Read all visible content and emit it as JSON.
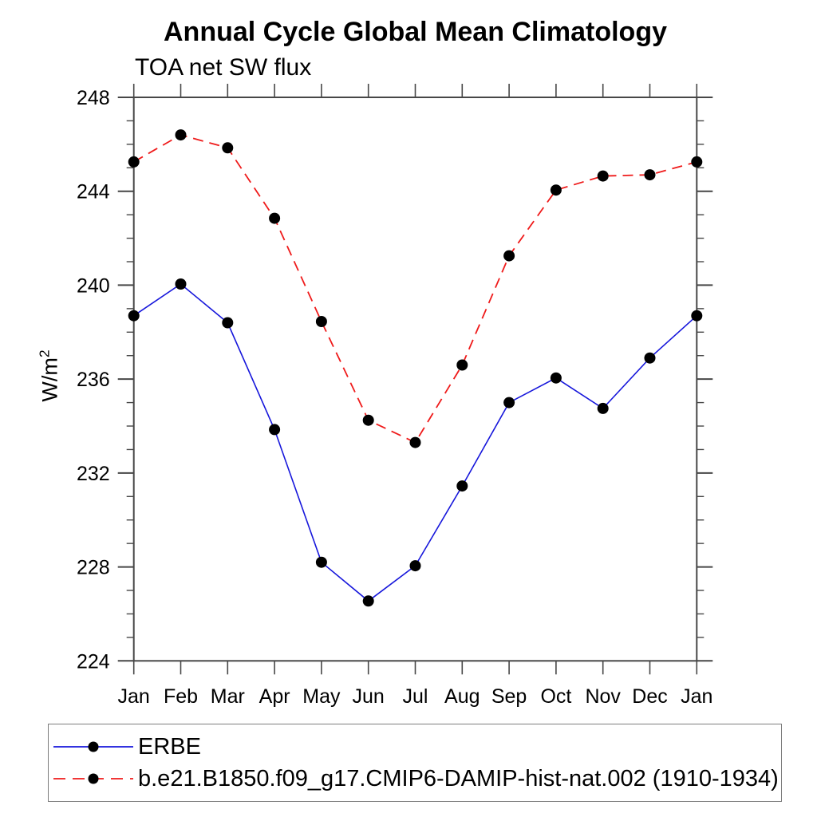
{
  "page": {
    "background": "#ffffff"
  },
  "chart": {
    "title": "Annual Cycle Global Mean Climatology",
    "subtitle": "TOA net SW flux",
    "ylabel_base": "W/m",
    "ylabel_exp": "2"
  },
  "chart_data": {
    "type": "line",
    "title": "Annual Cycle Global Mean Climatology",
    "subtitle": "TOA net SW flux",
    "xlabel": "",
    "ylabel": "W/m^2",
    "categories": [
      "Jan",
      "Feb",
      "Mar",
      "Apr",
      "May",
      "Jun",
      "Jul",
      "Aug",
      "Sep",
      "Oct",
      "Nov",
      "Dec",
      "Jan"
    ],
    "ylim": [
      224,
      248
    ],
    "ytick_major": [
      224,
      228,
      232,
      236,
      240,
      244,
      248
    ],
    "ytick_minor_step": 1,
    "grid": false,
    "legend_position": "bottom-left-box",
    "axis_color": "#474747",
    "series": [
      {
        "name": "ERBE",
        "color": "#1616db",
        "style": "solid",
        "marker": "filled-circle",
        "marker_color": "#000000",
        "values": [
          238.7,
          240.05,
          238.4,
          233.85,
          228.2,
          226.55,
          228.05,
          231.45,
          235.0,
          236.05,
          234.75,
          236.9,
          238.7
        ]
      },
      {
        "name": "b.e21.B1850.f09_g17.CMIP6-DAMIP-hist-nat.002 (1910-1934)",
        "color": "#ef1a1a",
        "style": "dashed",
        "marker": "filled-circle",
        "marker_color": "#000000",
        "values": [
          245.25,
          246.4,
          245.85,
          242.85,
          238.45,
          234.25,
          233.3,
          236.6,
          241.25,
          244.05,
          244.65,
          244.7,
          245.25
        ]
      }
    ]
  }
}
